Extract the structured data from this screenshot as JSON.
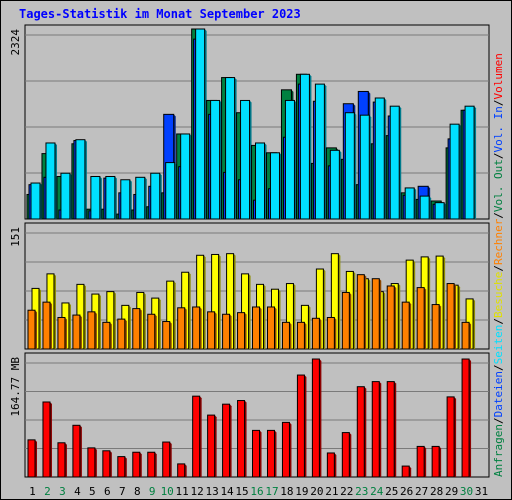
{
  "title": "Tages-Statistik im Monat September 2023",
  "chart_data": [
    {
      "type": "bar",
      "panel": "requests",
      "ymax_label": "2324",
      "ylim": [
        0,
        2324
      ],
      "legend": [
        {
          "name": "Anfragen",
          "color": "#008040"
        },
        {
          "name": "Dateien",
          "color": "#0040ff"
        },
        {
          "name": "Seiten",
          "color": "#00e0ff"
        }
      ],
      "days": [
        "1",
        "2",
        "3",
        "4",
        "5",
        "6",
        "7",
        "8",
        "9",
        "10",
        "11",
        "12",
        "13",
        "14",
        "15",
        "16",
        "17",
        "18",
        "19",
        "20",
        "21",
        "22",
        "23",
        "24",
        "25",
        "26",
        "27",
        "28",
        "29",
        "30",
        "31"
      ],
      "weekend_days": [
        "2",
        "3",
        "9",
        "10",
        "16",
        "17",
        "23",
        "24",
        "30"
      ],
      "series": [
        {
          "name": "Anfragen",
          "values": [
            300,
            800,
            520,
            920,
            120,
            120,
            60,
            110,
            150,
            320,
            1040,
            2324,
            1450,
            1730,
            1300,
            900,
            810,
            1580,
            1770,
            680,
            870,
            730,
            420,
            920,
            1020,
            320,
            240,
            220,
            870,
            1330,
            0
          ]
        },
        {
          "name": "Dateien",
          "values": [
            420,
            510,
            110,
            960,
            100,
            500,
            320,
            300,
            400,
            1280,
            640,
            2200,
            1280,
            570,
            480,
            230,
            370,
            1000,
            1650,
            1440,
            650,
            1410,
            1560,
            1430,
            1260,
            290,
            400,
            180,
            980,
            1330,
            0
          ]
        },
        {
          "name": "Seiten",
          "values": [
            440,
            930,
            560,
            970,
            520,
            520,
            480,
            510,
            560,
            690,
            1040,
            2324,
            1450,
            1730,
            1450,
            930,
            810,
            1450,
            1770,
            1650,
            840,
            1300,
            1270,
            1480,
            1380,
            380,
            280,
            200,
            1160,
            1380,
            0
          ]
        }
      ]
    },
    {
      "type": "bar",
      "panel": "visits",
      "ymax_label": "151",
      "ylim": [
        0,
        151
      ],
      "legend": [
        {
          "name": "Besuche",
          "color": "#ffff00"
        },
        {
          "name": "Rechner",
          "color": "#ff8000"
        }
      ],
      "series": [
        {
          "name": "Besuche",
          "values": [
            75,
            93,
            57,
            80,
            68,
            71,
            54,
            70,
            63,
            84,
            95,
            116,
            117,
            118,
            93,
            80,
            74,
            81,
            54,
            99,
            118,
            96,
            87,
            71,
            81,
            110,
            114,
            115,
            79,
            62,
            0
          ]
        },
        {
          "name": "Rechner",
          "values": [
            48,
            58,
            39,
            42,
            46,
            33,
            37,
            50,
            43,
            34,
            51,
            52,
            46,
            43,
            45,
            52,
            52,
            33,
            33,
            38,
            39,
            70,
            92,
            87,
            78,
            58,
            76,
            55,
            81,
            33,
            0
          ]
        }
      ]
    },
    {
      "type": "bar",
      "panel": "volume",
      "ymax_label": "164.77 MB",
      "ylim": [
        0,
        164.77
      ],
      "legend": [
        {
          "name": "Volumen",
          "color": "#ff0000"
        },
        {
          "name": "Vol. In",
          "color": "#0040ff"
        },
        {
          "name": "Vol. Out",
          "color": "#008040"
        }
      ],
      "series": [
        {
          "name": "Volumen",
          "values": [
            51,
            103,
            47,
            71,
            40,
            36,
            28,
            34,
            34,
            48,
            18,
            111,
            85,
            100,
            105,
            64,
            64,
            75,
            140,
            162,
            33,
            61,
            124,
            131,
            131,
            15,
            42,
            42,
            110,
            162,
            0
          ]
        }
      ]
    }
  ],
  "side_labels": [
    {
      "text": "Anfragen",
      "color": "#008040"
    },
    {
      "text": "/",
      "color": "#000000"
    },
    {
      "text": "Dateien",
      "color": "#0040ff"
    },
    {
      "text": "/",
      "color": "#000000"
    },
    {
      "text": "Seiten",
      "color": "#00e0ff"
    },
    {
      "text": "/",
      "color": "#000000"
    },
    {
      "text": "Besuche",
      "color": "#e0e000"
    },
    {
      "text": "/",
      "color": "#000000"
    },
    {
      "text": "Rechner",
      "color": "#ff8000"
    },
    {
      "text": "/",
      "color": "#000000"
    },
    {
      "text": "Vol. Out",
      "color": "#008040"
    },
    {
      "text": "/",
      "color": "#000000"
    },
    {
      "text": "Vol. In",
      "color": "#0040ff"
    },
    {
      "text": "/",
      "color": "#000000"
    },
    {
      "text": "Volumen",
      "color": "#ff0000"
    }
  ]
}
